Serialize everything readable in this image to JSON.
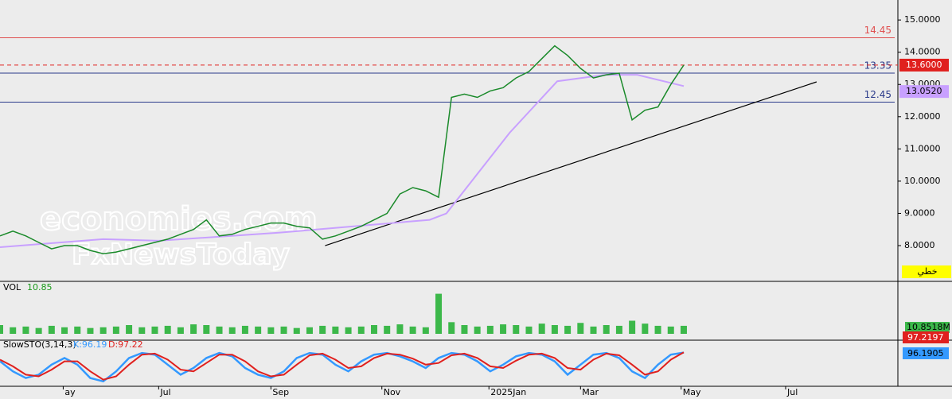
{
  "chart_data": {
    "type": "line",
    "x": [
      0,
      1,
      2,
      3,
      4,
      5,
      6,
      7,
      8,
      9,
      10,
      11,
      12,
      13,
      14,
      15,
      16,
      17,
      18,
      19,
      20,
      21,
      22,
      23,
      24,
      25,
      26,
      27,
      28,
      29,
      30,
      31,
      32,
      33,
      34,
      35,
      36,
      37,
      38,
      39,
      40,
      41,
      42,
      43,
      44,
      45,
      46,
      47,
      48,
      49,
      50,
      51,
      52,
      53
    ],
    "values": [
      8.3,
      8.45,
      8.3,
      8.1,
      7.9,
      8.0,
      8.0,
      7.85,
      7.75,
      7.8,
      7.9,
      8.0,
      8.1,
      8.2,
      8.35,
      8.5,
      8.8,
      8.3,
      8.35,
      8.5,
      8.6,
      8.7,
      8.7,
      8.6,
      8.55,
      8.2,
      8.3,
      8.45,
      8.6,
      8.8,
      9.0,
      9.6,
      9.8,
      9.7,
      9.5,
      12.6,
      12.7,
      12.6,
      12.8,
      12.9,
      13.2,
      13.4,
      13.8,
      14.2,
      13.9,
      13.5,
      13.2,
      13.3,
      13.35,
      11.9,
      12.2,
      12.3,
      13.0,
      13.6
    ],
    "color": "#1a8a2a",
    "ma": {
      "x": [
        0,
        8,
        12.3,
        21.6,
        33.3,
        34.6,
        39.5,
        43.2,
        46.9,
        49.4,
        53
      ],
      "values": [
        7.95,
        8.2,
        8.15,
        8.4,
        8.8,
        9.0,
        11.5,
        13.1,
        13.3,
        13.3,
        12.95
      ],
      "color": "#c8a0ff"
    },
    "xlim": [
      0,
      69.6
    ],
    "xticks": [
      {
        "value": 4.9,
        "label": "ay"
      },
      {
        "value": 12.3,
        "label": "Jul"
      },
      {
        "value": 21,
        "label": "Sep"
      },
      {
        "value": 29.6,
        "label": "Nov"
      },
      {
        "value": 37.9,
        "label": "2025Jan"
      },
      {
        "value": 45,
        "label": "Mar"
      },
      {
        "value": 52.8,
        "label": "May"
      },
      {
        "value": 60.9,
        "label": "Jul"
      }
    ],
    "ylim": [
      6.94,
      15.62
    ],
    "yticks": [
      {
        "value": 15,
        "label": "15.0000"
      },
      {
        "value": 14,
        "label": "14.0000"
      },
      {
        "value": 13,
        "label": "13.0000"
      },
      {
        "value": 12,
        "label": "12.0000"
      },
      {
        "value": 11,
        "label": "11.0000"
      },
      {
        "value": 10,
        "label": "10.0000"
      },
      {
        "value": 9,
        "label": "9.0000"
      },
      {
        "value": 8,
        "label": "8.0000"
      }
    ],
    "levels": [
      {
        "value": 14.45,
        "color": "#e05050"
      },
      {
        "value": 13.35,
        "color": "#2a3a8a"
      },
      {
        "value": 12.45,
        "color": "#2a3a8a"
      }
    ],
    "last_price": {
      "value": 13.6,
      "label": "13.6000",
      "color": "#e0201e"
    },
    "ma_last": {
      "value": 13.052,
      "label": "13.0520",
      "color": "#c8a0ff"
    },
    "trendline": {
      "x": [
        25.2,
        63.3
      ],
      "y": [
        8.0,
        13.08
      ]
    },
    "style_label": "خطي",
    "watermarks": [
      "economies.com",
      "FxNewsToday"
    ],
    "volume": {
      "label": "VOL",
      "current": 10.85,
      "last": {
        "value": 10.8518,
        "label": "10.8518M"
      },
      "ylim": [
        0,
        60
      ],
      "color": "#3cb84a",
      "values": [
        12,
        9,
        10,
        8,
        11,
        9,
        10,
        8,
        9,
        10,
        12,
        9,
        10,
        11,
        9,
        13,
        12,
        10,
        9,
        11,
        10,
        9,
        10,
        8,
        9,
        11,
        10,
        9,
        10,
        12,
        11,
        13,
        10,
        9,
        55,
        16,
        12,
        10,
        11,
        13,
        12,
        10,
        14,
        12,
        11,
        15,
        10,
        12,
        11,
        18,
        14,
        11,
        10,
        11
      ]
    },
    "stochastic": {
      "label": "SlowSTO(3,14,3)",
      "k_label": "K:96.19",
      "d_label": "D:97.22",
      "ylim": [
        0,
        100
      ],
      "k": {
        "color": "#3399ff",
        "values": [
          70,
          40,
          20,
          30,
          60,
          80,
          60,
          20,
          10,
          40,
          80,
          95,
          90,
          60,
          30,
          50,
          80,
          95,
          85,
          50,
          30,
          20,
          40,
          80,
          95,
          90,
          60,
          40,
          70,
          90,
          95,
          85,
          70,
          50,
          80,
          95,
          90,
          70,
          40,
          60,
          85,
          95,
          90,
          70,
          30,
          60,
          90,
          95,
          80,
          40,
          20,
          60,
          90,
          96.19
        ]
      },
      "d": {
        "color": "#e0201e",
        "values": [
          75,
          55,
          30,
          25,
          45,
          70,
          70,
          40,
          15,
          25,
          60,
          90,
          93,
          75,
          45,
          40,
          65,
          90,
          90,
          70,
          40,
          25,
          30,
          60,
          88,
          93,
          75,
          50,
          55,
          80,
          93,
          90,
          78,
          60,
          65,
          88,
          93,
          80,
          55,
          50,
          72,
          90,
          93,
          80,
          50,
          45,
          75,
          93,
          88,
          60,
          30,
          40,
          75,
          97.22
        ]
      },
      "k_last": {
        "value": 96.1905,
        "label": "96.1905"
      },
      "d_last": {
        "value": 97.2197,
        "label": "97.2197"
      }
    }
  }
}
